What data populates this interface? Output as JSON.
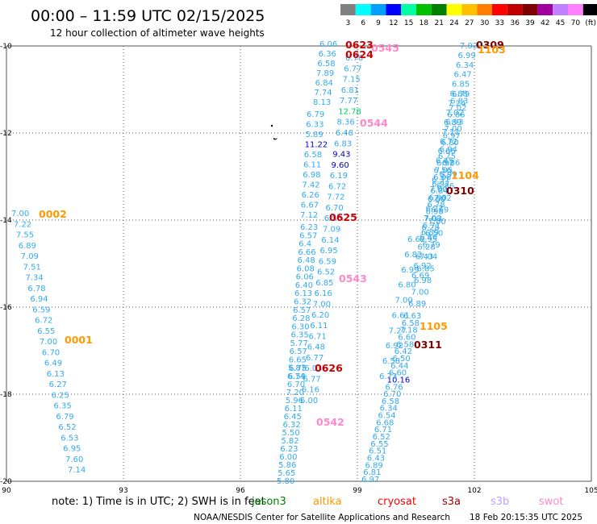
{
  "header": {
    "title": "00:00 – 11:59 UTC 02/15/2025",
    "subtitle": "12 hour collection of altimeter wave heights"
  },
  "scale": {
    "labels": [
      "3",
      "6",
      "9",
      "12",
      "15",
      "18",
      "21",
      "24",
      "27",
      "30",
      "33",
      "36",
      "39",
      "42",
      "45",
      "70",
      "(ft)"
    ],
    "colors": [
      "#808080",
      "#00ffff",
      "#00a0ff",
      "#0000ff",
      "#00ffa0",
      "#00c000",
      "#008000",
      "#ffff00",
      "#ffc000",
      "#ff8000",
      "#ff0000",
      "#c00000",
      "#800000",
      "#a000a0",
      "#c080ff",
      "#ff80ff",
      "#000000"
    ]
  },
  "axes": {
    "x_ticks": [
      "90",
      "93",
      "96",
      "99",
      "102",
      "105"
    ],
    "y_ticks": [
      "-10",
      "-12",
      "-14",
      "-16",
      "-18",
      "-20"
    ]
  },
  "tracks": [
    {
      "time": "0001",
      "color": "#ff9900",
      "values": [
        "7.00",
        "7.22",
        "7.55",
        "6.89",
        "7.09",
        "7.51",
        "7.34",
        "6.78",
        "6.94",
        "6.59",
        "6.72",
        "6.55",
        "7.00",
        "6.70",
        "6.49",
        "6.13",
        "6.27",
        "6.25",
        "6.35",
        "6.79",
        "6.52",
        "6.53",
        "6.95",
        "7.60",
        "7.14"
      ]
    },
    {
      "time": "0002",
      "color": "#ff9900",
      "values": []
    },
    {
      "time": "0542",
      "color": "#ff88cc",
      "values": [
        "5.80",
        "5.65",
        "5.86",
        "6.00",
        "6.23",
        "5.82",
        "5.50",
        "6.32",
        "6.45",
        "6.11",
        "5.96",
        "7.20",
        "6.70",
        "6.59",
        "6.75"
      ]
    },
    {
      "time": "0543",
      "color": "#ff88cc",
      "values": [
        "6.74",
        "5.87",
        "6.65",
        "6.57",
        "5.77",
        "6.35",
        "6.30",
        "6.28",
        "6.57",
        "6.32",
        "6.13",
        "6.40",
        "6.06",
        "6.08",
        "6.48",
        "6.66",
        "6.4",
        "6.57",
        "6.23"
      ]
    },
    {
      "time": "0544",
      "color": "#ff88cc",
      "values": [
        "6.79",
        "6.33",
        "5.89",
        "11.22",
        "6.58",
        "6.11",
        "6.98",
        "7.42",
        "6.26",
        "6.67",
        "7.12"
      ]
    },
    {
      "time": "0545",
      "color": "#ff88cc",
      "values": [
        "6.06",
        "6.36",
        "6.58",
        "7.89",
        "6.84",
        "7.74",
        "8.13"
      ]
    },
    {
      "time": "0623",
      "color": "#cc0000",
      "values": []
    },
    {
      "time": "0624",
      "color": "#cc0000",
      "values": [
        "6.76",
        "6.77",
        "7.15",
        "6.81",
        "7.77",
        "12.78",
        "8.36",
        "6.48",
        "6.83",
        "9.43",
        "9.60",
        "6.19",
        "6.72",
        "7.72",
        "6.70",
        "6.56",
        "7.09",
        "6.14",
        "6.95",
        "6.59",
        "6.52",
        "6.85",
        "6.16",
        "7.00",
        "6.20",
        "6.11",
        "6.71",
        "6.48",
        "6.77",
        "6.03",
        "6.77",
        "6.16",
        "6.00"
      ]
    },
    {
      "time": "0625",
      "color": "#cc0000",
      "values": []
    },
    {
      "time": "0626",
      "color": "#cc0000",
      "values": []
    },
    {
      "time": "0309",
      "color": "#800000",
      "values": [
        "7.02",
        "6.99",
        "6.34",
        "6.47",
        "6.85",
        "6.88",
        "7.24",
        "7.02",
        "6.89",
        "7.11",
        "6.72",
        "6.66",
        "6.45",
        "6.56",
        "6.37",
        "7.00",
        "6.60",
        "6.27",
        "7.00",
        "6.28",
        "6.40",
        "6.28",
        "6.43",
        "6.92",
        "6.69"
      ]
    },
    {
      "time": "0310",
      "color": "#800000",
      "values": [
        "6.86",
        "6.99",
        "6.86",
        "7.02",
        "6.69",
        "7.00",
        "6.50",
        "6.79",
        "7.04",
        "6.85",
        "6.98",
        "7.00",
        "6.89"
      ]
    },
    {
      "time": "0311",
      "color": "#800000",
      "values": [
        "6.63",
        "6.58",
        "7.18",
        "6.60",
        "6.58",
        "6.42",
        "6.50",
        "6.44",
        "6.60",
        "10.16",
        "6.76",
        "6.70",
        "6.58",
        "6.34",
        "6.54",
        "6.68",
        "6.71",
        "6.52",
        "6.55",
        "6.51",
        "6.43",
        "6.89",
        "6.81",
        "6.97"
      ]
    },
    {
      "time": "1103",
      "color": "#ff9900",
      "values": []
    },
    {
      "time": "1104",
      "color": "#ff9900",
      "values": [
        "6.79",
        "6.83",
        "7.02",
        "6.86",
        "6.93",
        "7.00",
        "6.97",
        "6.80",
        "6.94",
        "6.75",
        "6.92",
        "7.05",
        "6.88",
        "6.97",
        "6.84",
        "6.90",
        "6.78",
        "6.98",
        "7.03",
        "6.71",
        "6.89",
        "6.95"
      ]
    },
    {
      "time": "1105",
      "color": "#ff9900",
      "values": [
        "6.62",
        "6.83",
        "6.99",
        "6.80",
        "7.00",
        "6.61",
        "7.27",
        "6.92",
        "6.58",
        "6.73"
      ]
    }
  ],
  "legend": {
    "note": "note:  1) Time is in UTC; 2) SWH is in feet",
    "satellites": [
      {
        "name": "jason3",
        "color": "#008000"
      },
      {
        "name": "altika",
        "color": "#ff9900"
      },
      {
        "name": "cryosat",
        "color": "#ff0000"
      },
      {
        "name": "s3a",
        "color": "#990000"
      },
      {
        "name": "s3b",
        "color": "#c0a0ff"
      },
      {
        "name": "swot",
        "color": "#ff88cc"
      }
    ]
  },
  "footer": {
    "credit": "NOAA/NESDIS Center for Satellite Applications and Research",
    "timestamp": "18 Feb 20:15:35 UTC 2025"
  }
}
